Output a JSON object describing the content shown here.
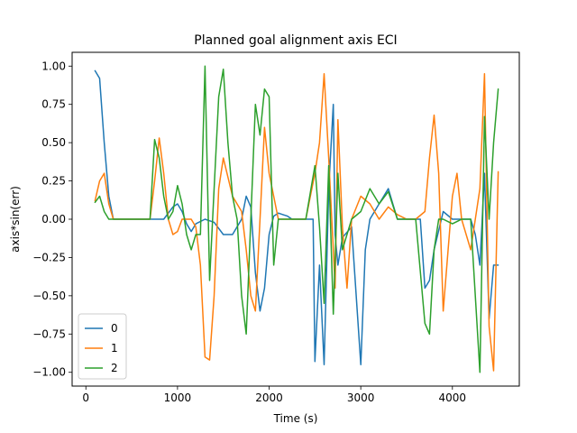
{
  "chart_data": {
    "type": "line",
    "title": "Planned goal alignment axis ECI",
    "xlabel": "Time (s)",
    "ylabel": "axis*sin(err)",
    "xlim": [
      -150,
      4730
    ],
    "ylim": [
      -1.09,
      1.09
    ],
    "xticks": [
      0,
      1000,
      2000,
      3000,
      4000
    ],
    "xtick_labels": [
      "0",
      "1000",
      "2000",
      "3000",
      "4000"
    ],
    "yticks": [
      -1.0,
      -0.75,
      -0.5,
      -0.25,
      0.0,
      0.25,
      0.5,
      0.75,
      1.0
    ],
    "ytick_labels": [
      "−1.00",
      "−0.75",
      "−0.50",
      "−0.25",
      "0.00",
      "0.25",
      "0.50",
      "0.75",
      "1.00"
    ],
    "grid": false,
    "legend_position": "lower-left",
    "series": [
      {
        "name": "0",
        "color": "#1f77b4",
        "x": [
          100,
          150,
          200,
          250,
          300,
          400,
          500,
          600,
          700,
          750,
          850,
          950,
          1000,
          1050,
          1100,
          1150,
          1200,
          1300,
          1400,
          1500,
          1600,
          1700,
          1750,
          1800,
          1850,
          1900,
          1950,
          2000,
          2050,
          2100,
          2150,
          2200,
          2250,
          2300,
          2400,
          2480,
          2500,
          2550,
          2600,
          2650,
          2700,
          2720,
          2750,
          2800,
          2900,
          3000,
          3050,
          3100,
          3200,
          3300,
          3350,
          3400,
          3500,
          3600,
          3650,
          3700,
          3750,
          3800,
          3900,
          4000,
          4100,
          4200,
          4250,
          4300,
          4350,
          4400,
          4450,
          4500
        ],
        "y": [
          0.97,
          0.92,
          0.5,
          0.15,
          0.0,
          0.0,
          0.0,
          0.0,
          0.0,
          0.0,
          0.0,
          0.08,
          0.1,
          0.05,
          -0.03,
          -0.08,
          -0.03,
          0.0,
          -0.02,
          -0.1,
          -0.1,
          0.0,
          0.15,
          0.08,
          -0.35,
          -0.6,
          -0.45,
          -0.1,
          0.02,
          0.04,
          0.03,
          0.02,
          0.0,
          0.0,
          0.0,
          0.0,
          -0.93,
          -0.3,
          -0.95,
          0.2,
          0.75,
          -0.1,
          -0.3,
          -0.12,
          -0.05,
          -0.95,
          -0.2,
          0.0,
          0.1,
          0.2,
          0.1,
          0.0,
          0.0,
          0.0,
          0.0,
          -0.45,
          -0.4,
          -0.2,
          0.05,
          0.0,
          0.0,
          0.0,
          -0.1,
          -0.3,
          0.3,
          -0.65,
          -0.3,
          -0.3
        ]
      },
      {
        "name": "1",
        "color": "#ff7f0e",
        "x": [
          100,
          150,
          200,
          250,
          300,
          400,
          500,
          600,
          700,
          750,
          800,
          850,
          900,
          950,
          1000,
          1050,
          1100,
          1150,
          1200,
          1250,
          1300,
          1350,
          1400,
          1450,
          1500,
          1600,
          1700,
          1750,
          1800,
          1850,
          1900,
          1950,
          2000,
          2100,
          2200,
          2300,
          2400,
          2500,
          2550,
          2600,
          2650,
          2700,
          2720,
          2750,
          2800,
          2850,
          2900,
          3000,
          3100,
          3200,
          3300,
          3400,
          3500,
          3600,
          3700,
          3750,
          3800,
          3850,
          3900,
          4000,
          4050,
          4100,
          4200,
          4300,
          4350,
          4400,
          4450,
          4500
        ],
        "y": [
          0.12,
          0.25,
          0.3,
          0.1,
          0.0,
          0.0,
          0.0,
          0.0,
          0.0,
          0.25,
          0.53,
          0.3,
          0.0,
          -0.1,
          -0.08,
          0.0,
          0.0,
          0.0,
          -0.05,
          -0.3,
          -0.9,
          -0.92,
          -0.5,
          0.2,
          0.4,
          0.15,
          0.05,
          -0.2,
          -0.5,
          -0.6,
          0.0,
          0.6,
          0.3,
          0.0,
          0.0,
          0.0,
          0.0,
          0.3,
          0.5,
          0.95,
          0.4,
          -0.2,
          -0.45,
          0.65,
          -0.05,
          -0.45,
          0.0,
          0.15,
          0.1,
          0.0,
          0.08,
          0.03,
          0.0,
          0.0,
          0.05,
          0.4,
          0.68,
          0.3,
          -0.6,
          0.15,
          0.3,
          0.0,
          -0.2,
          0.2,
          0.95,
          -0.7,
          -0.99,
          0.31
        ]
      },
      {
        "name": "2",
        "color": "#2ca02c",
        "x": [
          100,
          150,
          200,
          250,
          300,
          400,
          500,
          600,
          700,
          750,
          800,
          850,
          900,
          950,
          1000,
          1050,
          1100,
          1150,
          1200,
          1250,
          1300,
          1350,
          1400,
          1450,
          1500,
          1550,
          1600,
          1650,
          1700,
          1750,
          1800,
          1850,
          1900,
          1950,
          2000,
          2050,
          2100,
          2200,
          2300,
          2400,
          2500,
          2550,
          2600,
          2650,
          2700,
          2750,
          2800,
          2900,
          3000,
          3100,
          3200,
          3300,
          3400,
          3500,
          3600,
          3700,
          3750,
          3800,
          3850,
          3900,
          4000,
          4100,
          4200,
          4300,
          4350,
          4400,
          4450,
          4500
        ],
        "y": [
          0.11,
          0.15,
          0.05,
          0.0,
          0.0,
          0.0,
          0.0,
          0.0,
          0.0,
          0.52,
          0.4,
          0.15,
          0.0,
          0.05,
          0.22,
          0.1,
          -0.1,
          -0.2,
          -0.1,
          -0.1,
          1.0,
          -0.4,
          0.2,
          0.8,
          0.98,
          0.5,
          0.15,
          0.0,
          -0.5,
          -0.75,
          0.0,
          0.75,
          0.55,
          0.85,
          0.8,
          -0.3,
          0.0,
          0.0,
          0.0,
          0.0,
          0.35,
          -0.05,
          -0.55,
          0.35,
          -0.62,
          0.3,
          -0.2,
          0.0,
          0.05,
          0.2,
          0.1,
          0.18,
          0.0,
          0.0,
          0.0,
          -0.68,
          -0.75,
          -0.2,
          0.0,
          0.0,
          -0.03,
          0.0,
          0.0,
          -1.0,
          0.67,
          0.0,
          0.5,
          0.85
        ]
      }
    ]
  }
}
